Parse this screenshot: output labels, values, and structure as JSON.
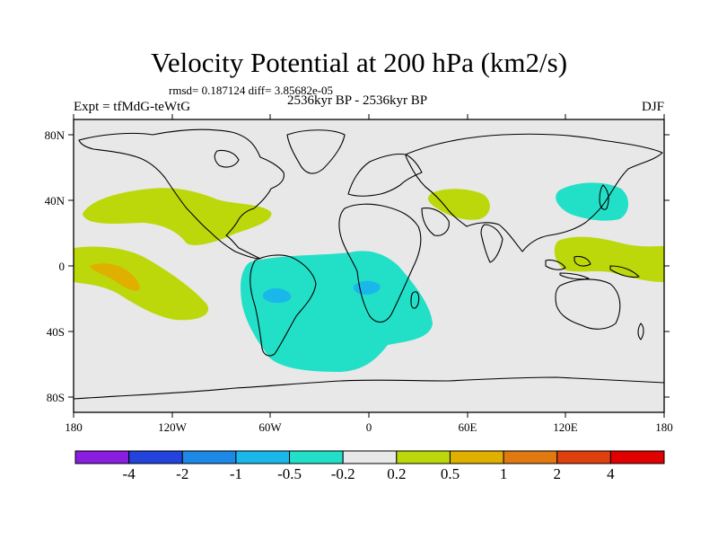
{
  "title": "Velocity Potential at 200 hPa (km2/s)",
  "stats": "rmsd= 0.187124 diff= 3.85682e-05",
  "experiment": "Expt = tfMdG-teWtG",
  "period": "2536kyr BP - 2536kyr BP",
  "season": "DJF",
  "lon_ticks": [
    "180",
    "120W",
    "60W",
    "0",
    "60E",
    "120E",
    "180"
  ],
  "lat_ticks": [
    "80N",
    "40N",
    "0",
    "40S",
    "80S"
  ],
  "colorbar": {
    "colors": [
      "#8a1ee0",
      "#2244dd",
      "#1e88e6",
      "#1ab8ea",
      "#22e0c8",
      "#e8e8e8",
      "#bcd80a",
      "#e0b000",
      "#e07a10",
      "#e04010",
      "#e00000"
    ],
    "labels": [
      "-4",
      "-2",
      "-1",
      "-0.5",
      "-0.2",
      "0.2",
      "0.5",
      "1",
      "2",
      "4"
    ]
  },
  "colors": {
    "ocean_background": "#e8e8e8",
    "positive_weak": "#bcd80a",
    "positive_moderate": "#e0b000",
    "negative_weak": "#22e0c8",
    "negative_moderate": "#1ab8ea"
  }
}
